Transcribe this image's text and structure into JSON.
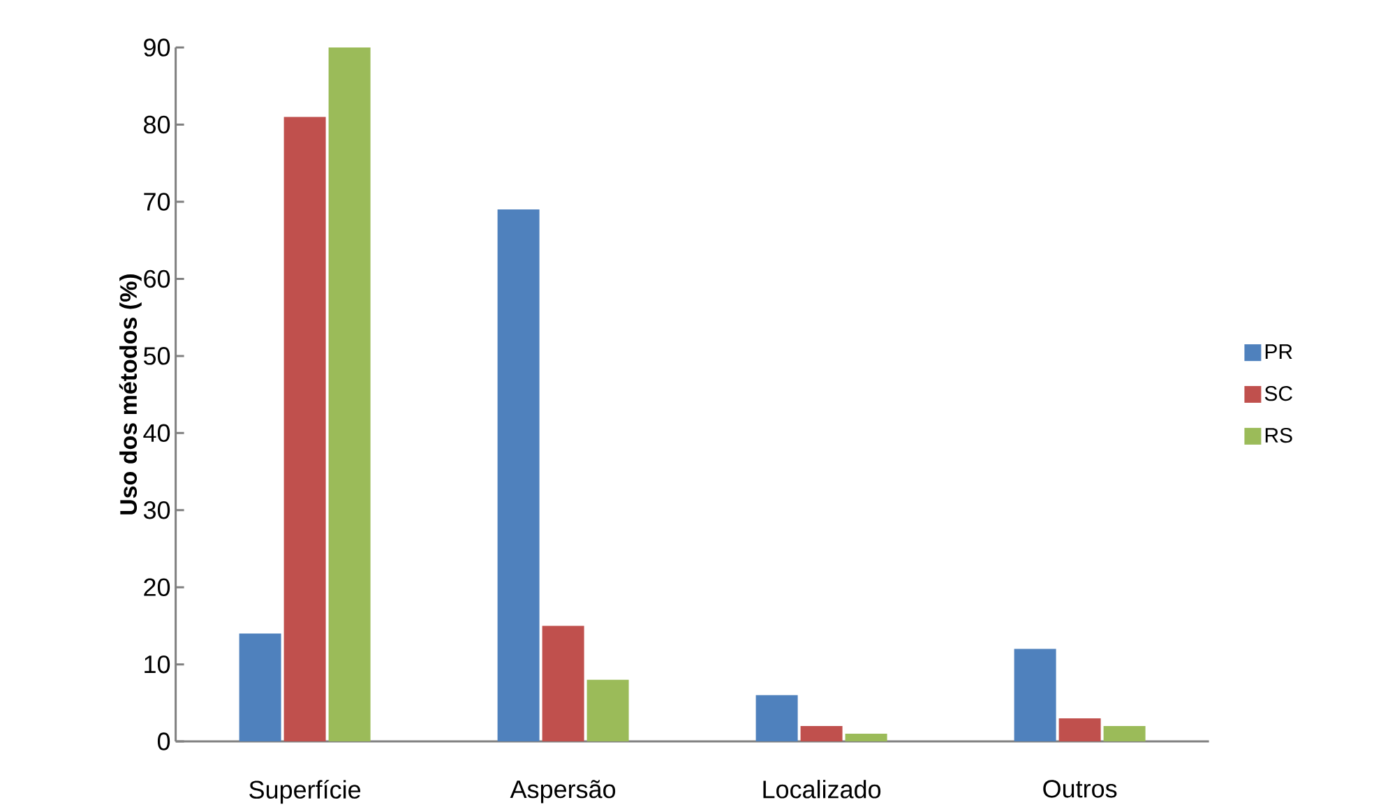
{
  "chart_data": {
    "type": "bar",
    "ylabel": "Uso dos métodos (%)",
    "categories": [
      "Superfície",
      "Aspersão",
      "Localizado",
      "Outros"
    ],
    "series": [
      {
        "name": "PR",
        "color": "#4f81bd",
        "values": [
          14,
          69,
          6,
          12
        ]
      },
      {
        "name": "SC",
        "color": "#c0504d",
        "values": [
          81,
          15,
          2,
          3
        ]
      },
      {
        "name": "RS",
        "color": "#9bbb59",
        "values": [
          90,
          8,
          1,
          2
        ]
      }
    ],
    "ylim": [
      0,
      90
    ],
    "yticks": [
      0,
      10,
      20,
      30,
      40,
      50,
      60,
      70,
      80,
      90
    ],
    "grid": false,
    "legend": "right"
  }
}
